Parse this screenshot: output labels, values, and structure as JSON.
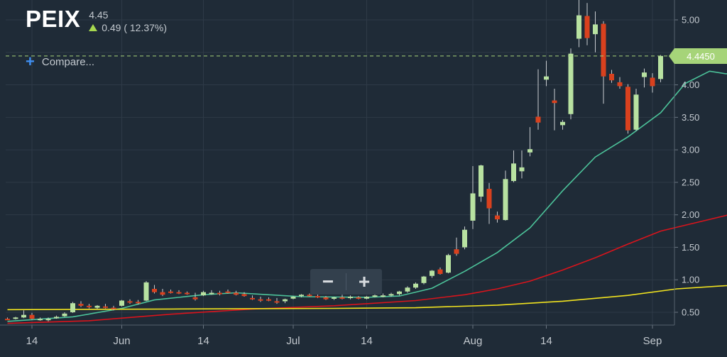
{
  "header": {
    "ticker": "PEIX",
    "price": "4.45",
    "change": "0.49 ( 12.37%)"
  },
  "toolbar": {
    "compare_label": "Compare...",
    "zoom_out_label": "−",
    "zoom_in_label": "+"
  },
  "last_price_label": "4.4450",
  "colors": {
    "background": "#1f2b37",
    "grid": "#2e3a47",
    "up_candle": "#b8e2a1",
    "down_candle": "#d9411e",
    "ma_short": "#4cc39a",
    "ma_mid": "#d9141c",
    "ma_long": "#f1e31f",
    "last_price": "#a6d479",
    "axis_text": "#c3c9cf"
  },
  "chart_data": {
    "type": "candlestick",
    "ylim": [
      0.35,
      5.3
    ],
    "y_ticks": [
      "5.00",
      "4.50",
      "4.00",
      "3.50",
      "3.00",
      "2.50",
      "2.00",
      "1.50",
      "1.00",
      "0.50"
    ],
    "y_tick_values": [
      5.0,
      4.5,
      4.0,
      3.5,
      3.0,
      2.5,
      2.0,
      1.5,
      1.0,
      0.5
    ],
    "x_ticks": [
      "14",
      "Jun",
      "14",
      "Jul",
      "14",
      "Aug",
      "14",
      "Sep"
    ],
    "x_tick_index": [
      3,
      14,
      24,
      35,
      44,
      57,
      66,
      79
    ],
    "last_price": 4.445,
    "candles": [
      [
        0.4,
        0.42,
        0.38,
        0.39
      ],
      [
        0.4,
        0.43,
        0.39,
        0.42
      ],
      [
        0.42,
        0.53,
        0.41,
        0.46
      ],
      [
        0.46,
        0.49,
        0.39,
        0.4
      ],
      [
        0.39,
        0.42,
        0.37,
        0.4
      ],
      [
        0.39,
        0.42,
        0.36,
        0.4
      ],
      [
        0.41,
        0.45,
        0.4,
        0.43
      ],
      [
        0.44,
        0.5,
        0.43,
        0.48
      ],
      [
        0.5,
        0.66,
        0.49,
        0.64
      ],
      [
        0.63,
        0.67,
        0.58,
        0.6
      ],
      [
        0.6,
        0.63,
        0.56,
        0.58
      ],
      [
        0.57,
        0.61,
        0.55,
        0.6
      ],
      [
        0.59,
        0.63,
        0.56,
        0.58
      ],
      [
        0.57,
        0.6,
        0.53,
        0.55
      ],
      [
        0.6,
        0.69,
        0.59,
        0.68
      ],
      [
        0.67,
        0.7,
        0.63,
        0.65
      ],
      [
        0.66,
        0.69,
        0.62,
        0.64
      ],
      [
        0.68,
        0.98,
        0.67,
        0.96
      ],
      [
        0.86,
        0.92,
        0.79,
        0.81
      ],
      [
        0.81,
        0.86,
        0.75,
        0.77
      ],
      [
        0.82,
        0.85,
        0.79,
        0.8
      ],
      [
        0.81,
        0.84,
        0.78,
        0.79
      ],
      [
        0.8,
        0.82,
        0.77,
        0.78
      ],
      [
        0.73,
        0.8,
        0.68,
        0.7
      ],
      [
        0.76,
        0.83,
        0.75,
        0.81
      ],
      [
        0.8,
        0.84,
        0.77,
        0.8
      ],
      [
        0.8,
        0.83,
        0.76,
        0.79
      ],
      [
        0.82,
        0.85,
        0.79,
        0.8
      ],
      [
        0.8,
        0.83,
        0.76,
        0.77
      ],
      [
        0.78,
        0.81,
        0.74,
        0.75
      ],
      [
        0.72,
        0.76,
        0.69,
        0.7
      ],
      [
        0.7,
        0.74,
        0.66,
        0.69
      ],
      [
        0.7,
        0.73,
        0.67,
        0.69
      ],
      [
        0.67,
        0.72,
        0.63,
        0.65
      ],
      [
        0.67,
        0.71,
        0.64,
        0.7
      ],
      [
        0.71,
        0.75,
        0.7,
        0.74
      ],
      [
        0.75,
        0.78,
        0.73,
        0.77
      ],
      [
        0.77,
        0.79,
        0.74,
        0.75
      ],
      [
        0.75,
        0.78,
        0.72,
        0.73
      ],
      [
        0.73,
        0.75,
        0.69,
        0.7
      ],
      [
        0.71,
        0.74,
        0.69,
        0.73
      ],
      [
        0.73,
        0.77,
        0.7,
        0.72
      ],
      [
        0.72,
        0.76,
        0.7,
        0.74
      ],
      [
        0.73,
        0.75,
        0.7,
        0.71
      ],
      [
        0.71,
        0.75,
        0.7,
        0.74
      ],
      [
        0.75,
        0.78,
        0.73,
        0.76
      ],
      [
        0.75,
        0.79,
        0.73,
        0.76
      ],
      [
        0.77,
        0.8,
        0.74,
        0.78
      ],
      [
        0.78,
        0.83,
        0.76,
        0.82
      ],
      [
        0.82,
        0.9,
        0.8,
        0.88
      ],
      [
        0.88,
        0.96,
        0.86,
        0.94
      ],
      [
        0.95,
        1.06,
        0.93,
        1.05
      ],
      [
        1.06,
        1.15,
        1.03,
        1.14
      ],
      [
        1.16,
        1.19,
        1.08,
        1.09
      ],
      [
        1.11,
        1.4,
        1.1,
        1.38
      ],
      [
        1.47,
        1.65,
        1.37,
        1.4
      ],
      [
        1.5,
        1.82,
        1.47,
        1.77
      ],
      [
        1.91,
        2.75,
        1.78,
        2.33
      ],
      [
        2.28,
        2.77,
        2.2,
        2.76
      ],
      [
        2.4,
        2.49,
        1.86,
        2.1
      ],
      [
        1.99,
        2.05,
        1.88,
        1.93
      ],
      [
        1.92,
        2.68,
        1.91,
        2.55
      ],
      [
        2.52,
        2.99,
        2.5,
        2.79
      ],
      [
        2.67,
        2.99,
        2.56,
        2.73
      ],
      [
        2.96,
        3.35,
        2.9,
        3.01
      ],
      [
        3.51,
        4.24,
        3.31,
        3.42
      ],
      [
        4.08,
        4.37,
        3.98,
        4.13
      ],
      [
        3.76,
        3.94,
        3.3,
        3.72
      ],
      [
        3.38,
        3.46,
        3.31,
        3.43
      ],
      [
        3.55,
        4.56,
        3.47,
        4.48
      ],
      [
        4.71,
        5.58,
        4.58,
        5.07
      ],
      [
        5.06,
        5.26,
        4.61,
        4.72
      ],
      [
        4.78,
        5.13,
        4.5,
        4.93
      ],
      [
        4.94,
        4.98,
        3.71,
        4.13
      ],
      [
        4.17,
        4.23,
        4.03,
        4.07
      ],
      [
        4.04,
        4.12,
        3.94,
        3.98
      ],
      [
        3.97,
        4.01,
        3.25,
        3.3
      ],
      [
        3.31,
        3.94,
        3.29,
        3.85
      ],
      [
        4.12,
        4.25,
        3.96,
        4.19
      ],
      [
        4.11,
        4.18,
        3.88,
        3.98
      ],
      [
        4.09,
        4.46,
        4.04,
        4.445
      ]
    ],
    "series": [
      {
        "kind": "ma_short",
        "points": [
          [
            0,
            0.36
          ],
          [
            8,
            0.43
          ],
          [
            14,
            0.56
          ],
          [
            18,
            0.69
          ],
          [
            24,
            0.77
          ],
          [
            28,
            0.8
          ],
          [
            32,
            0.77
          ],
          [
            36,
            0.74
          ],
          [
            44,
            0.73
          ],
          [
            48,
            0.75
          ],
          [
            52,
            0.87
          ],
          [
            56,
            1.13
          ],
          [
            60,
            1.42
          ],
          [
            64,
            1.8
          ],
          [
            68,
            2.37
          ],
          [
            72,
            2.89
          ],
          [
            76,
            3.2
          ],
          [
            80,
            3.57
          ],
          [
            83,
            4.02
          ],
          [
            86,
            4.21
          ],
          [
            88,
            4.17
          ],
          [
            91,
            4.23
          ],
          [
            93,
            4.28
          ]
        ]
      },
      {
        "kind": "ma_mid",
        "points": [
          [
            0,
            0.33
          ],
          [
            10,
            0.37
          ],
          [
            20,
            0.47
          ],
          [
            30,
            0.55
          ],
          [
            40,
            0.6
          ],
          [
            50,
            0.68
          ],
          [
            56,
            0.77
          ],
          [
            60,
            0.86
          ],
          [
            64,
            0.98
          ],
          [
            68,
            1.15
          ],
          [
            72,
            1.34
          ],
          [
            76,
            1.55
          ],
          [
            80,
            1.75
          ],
          [
            84,
            1.87
          ],
          [
            88,
            1.99
          ],
          [
            93,
            2.17
          ]
        ]
      },
      {
        "kind": "ma_long",
        "points": [
          [
            0,
            0.54
          ],
          [
            20,
            0.55
          ],
          [
            40,
            0.56
          ],
          [
            50,
            0.57
          ],
          [
            60,
            0.61
          ],
          [
            68,
            0.67
          ],
          [
            76,
            0.76
          ],
          [
            82,
            0.86
          ],
          [
            88,
            0.91
          ],
          [
            93,
            0.94
          ]
        ]
      }
    ]
  }
}
